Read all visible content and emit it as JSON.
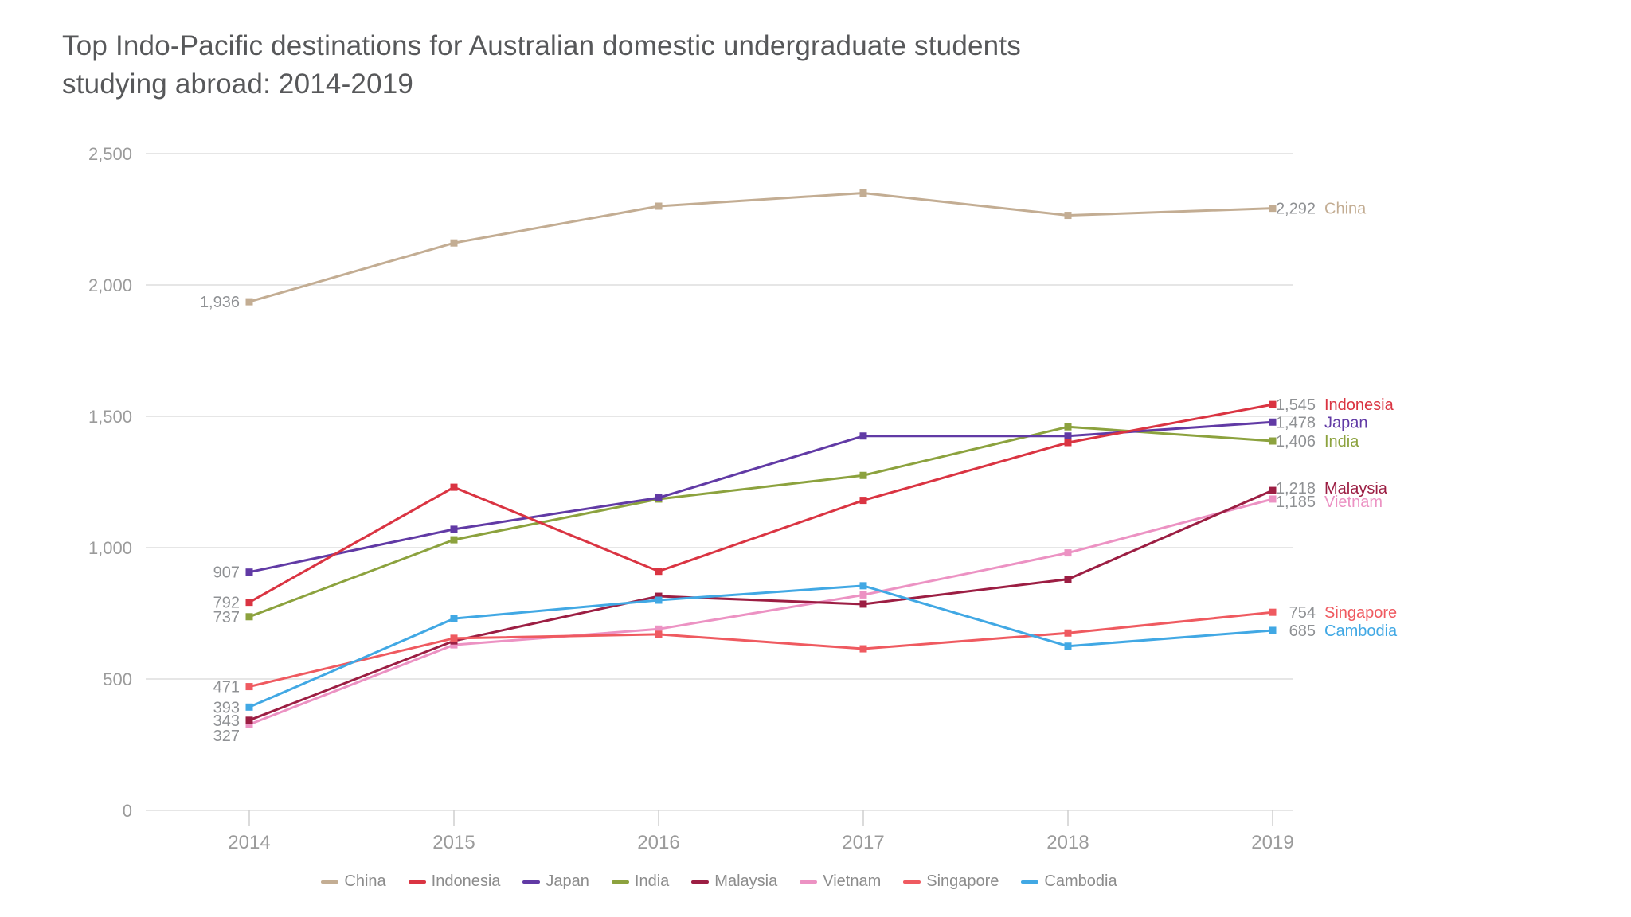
{
  "title": "Top Indo-Pacific destinations for Australian domestic undergraduate students\nstudying abroad: 2014-2019",
  "chart_data": {
    "type": "line",
    "x": [
      2014,
      2015,
      2016,
      2017,
      2018,
      2019
    ],
    "xlabel": "",
    "ylabel": "",
    "ylim": [
      0,
      2500
    ],
    "yticks": [
      0,
      500,
      1000,
      1500,
      2000,
      2500
    ],
    "ytick_labels": [
      "0",
      "500",
      "1,000",
      "1,500",
      "2,000",
      "2,500"
    ],
    "grid": true,
    "legend_position": "bottom",
    "point_label_first": true,
    "point_label_last": true,
    "series": [
      {
        "name": "China",
        "color": "#c3ad93",
        "values": [
          1936,
          2160,
          2300,
          2350,
          2265,
          2292
        ],
        "first_label": "1,936",
        "last_label": "2,292"
      },
      {
        "name": "Indonesia",
        "color": "#da3442",
        "values": [
          792,
          1230,
          910,
          1180,
          1400,
          1545
        ],
        "first_label": "792",
        "last_label": "1,545"
      },
      {
        "name": "Japan",
        "color": "#613aa5",
        "values": [
          907,
          1070,
          1190,
          1425,
          1425,
          1478
        ],
        "first_label": "907",
        "last_label": "1,478"
      },
      {
        "name": "India",
        "color": "#8ca23e",
        "values": [
          737,
          1030,
          1185,
          1275,
          1460,
          1406
        ],
        "first_label": "737",
        "last_label": "1,406"
      },
      {
        "name": "Malaysia",
        "color": "#9c1e43",
        "values": [
          343,
          645,
          815,
          785,
          880,
          1218
        ],
        "first_label": "343",
        "last_label": "1,218"
      },
      {
        "name": "Vietnam",
        "color": "#ec92c3",
        "values": [
          327,
          630,
          690,
          820,
          980,
          1185
        ],
        "first_label": "327",
        "last_label": "1,185"
      },
      {
        "name": "Singapore",
        "color": "#ef5a60",
        "values": [
          471,
          655,
          670,
          615,
          675,
          754
        ],
        "first_label": "471",
        "last_label": "754"
      },
      {
        "name": "Cambodia",
        "color": "#41a8e4",
        "values": [
          393,
          730,
          800,
          855,
          625,
          685
        ],
        "first_label": "393",
        "last_label": "685"
      }
    ],
    "value_label_color": "#8f9194",
    "axis_label_color": "#9b9b9b",
    "grid_color": "#dedede"
  }
}
